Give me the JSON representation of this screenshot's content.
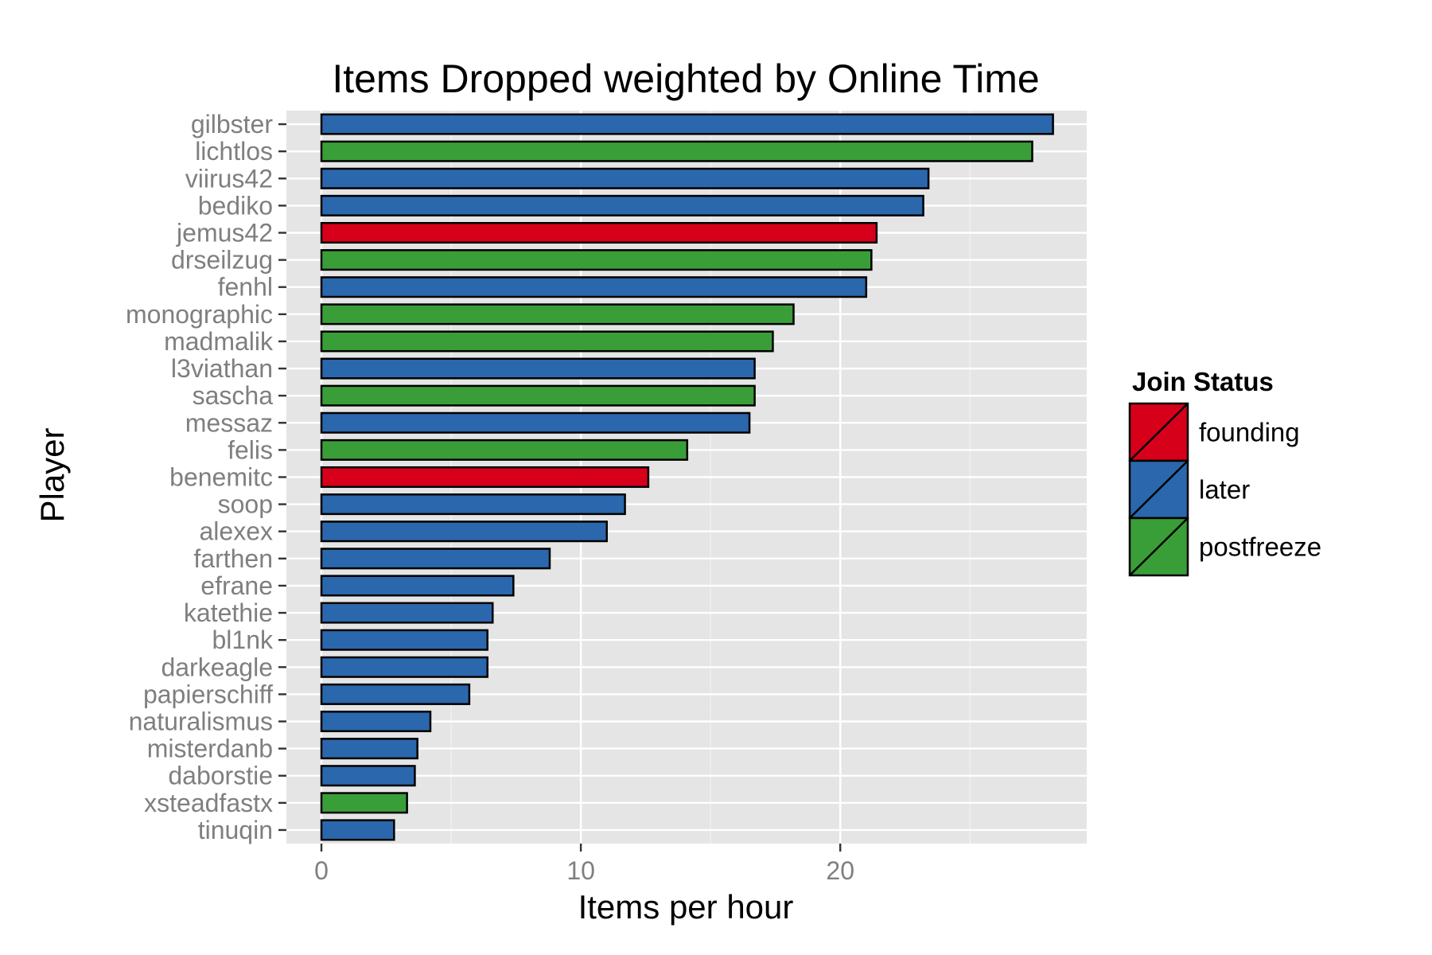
{
  "chart_data": {
    "type": "bar",
    "orientation": "horizontal",
    "title": "Items Dropped weighted by Online Time",
    "xlabel": "Items per hour",
    "ylabel": "Player",
    "xlim": [
      -1.35,
      29.5
    ],
    "xticks": [
      0,
      10,
      20
    ],
    "grid": true,
    "legend": {
      "title": "Join Status",
      "position": "right",
      "entries": [
        "founding",
        "later",
        "postfreeze"
      ]
    },
    "colors": {
      "founding": "#d7001b",
      "later": "#2b67ac",
      "postfreeze": "#3a9e38"
    },
    "categories": [
      "gilbster",
      "lichtlos",
      "viirus42",
      "bediko",
      "jemus42",
      "drseilzug",
      "fenhl",
      "monographic",
      "madmalik",
      "l3viathan",
      "sascha",
      "messaz",
      "felis",
      "benemitc",
      "soop",
      "alexex",
      "farthen",
      "efrane",
      "katethie",
      "bl1nk",
      "darkeagle",
      "papierschiff",
      "naturalismus",
      "misterdanb",
      "daborstie",
      "xsteadfastx",
      "tinuqin"
    ],
    "values": [
      28.2,
      27.4,
      23.4,
      23.2,
      21.4,
      21.2,
      21.0,
      18.2,
      17.4,
      16.7,
      16.7,
      16.5,
      14.1,
      12.6,
      11.7,
      11.0,
      8.8,
      7.4,
      6.6,
      6.4,
      6.4,
      5.7,
      4.2,
      3.7,
      3.6,
      3.3,
      2.8
    ],
    "groups": [
      "later",
      "postfreeze",
      "later",
      "later",
      "founding",
      "postfreeze",
      "later",
      "postfreeze",
      "postfreeze",
      "later",
      "postfreeze",
      "later",
      "postfreeze",
      "founding",
      "later",
      "later",
      "later",
      "later",
      "later",
      "later",
      "later",
      "later",
      "later",
      "later",
      "later",
      "postfreeze",
      "later"
    ]
  }
}
